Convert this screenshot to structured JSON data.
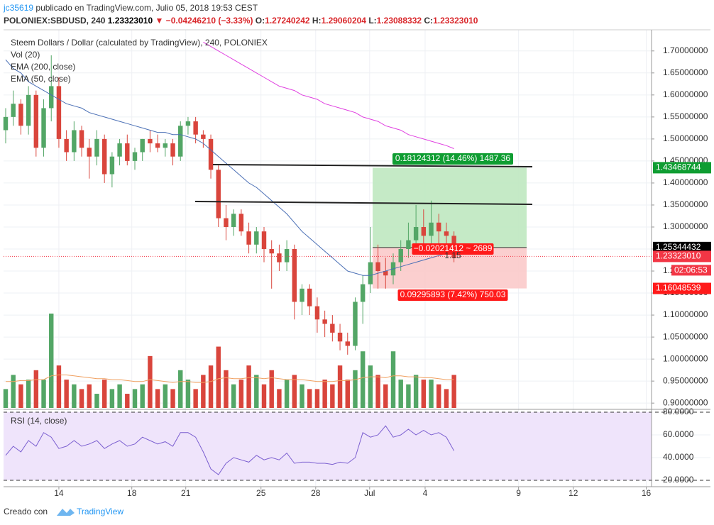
{
  "header": {
    "user": "jc35619",
    "published": "publicado en TradingView.com, Julio 05, 2018 19:53 CEST",
    "symbol": "POLONIEX:SBDUSD, 240",
    "last": "1.23323010",
    "change": "▼ −0.04246210 (−3.33%)",
    "o_label": "O:",
    "o": "1.27240242",
    "h_label": "H:",
    "h": "1.29060204",
    "l_label": "L:",
    "l": "1.23088332",
    "c_label": "C:",
    "c": "1.23323010"
  },
  "chart_data": {
    "type": "candlestick",
    "title": "Steem Dollars / Dollar (calculated by TradingView), 240, POLONIEX",
    "up_color": "#53a666",
    "down_color": "#d9453c",
    "open": [
      1.52,
      1.55,
      1.58,
      1.53,
      1.6,
      1.48,
      1.57,
      1.62,
      1.5,
      1.47,
      1.52,
      1.48,
      1.46,
      1.5,
      1.42,
      1.46,
      1.49,
      1.45,
      1.47,
      1.5,
      1.49,
      1.48,
      1.49,
      1.46,
      1.53,
      1.54,
      1.51,
      1.5,
      1.43,
      1.32,
      1.3,
      1.33,
      1.29,
      1.26,
      1.29,
      1.25,
      1.24,
      1.22,
      1.25,
      1.13,
      1.16,
      1.12,
      1.09,
      1.08,
      1.06,
      1.04,
      1.03,
      1.13,
      1.17,
      1.22,
      1.2,
      1.19,
      1.22,
      1.25,
      1.27,
      1.3,
      1.28,
      1.31,
      1.29,
      1.28
    ],
    "high": [
      1.57,
      1.61,
      1.59,
      1.62,
      1.61,
      1.59,
      1.69,
      1.64,
      1.52,
      1.54,
      1.53,
      1.5,
      1.52,
      1.51,
      1.47,
      1.5,
      1.51,
      1.48,
      1.5,
      1.52,
      1.51,
      1.5,
      1.5,
      1.54,
      1.55,
      1.55,
      1.52,
      1.51,
      1.44,
      1.35,
      1.34,
      1.34,
      1.31,
      1.3,
      1.3,
      1.27,
      1.26,
      1.27,
      1.26,
      1.17,
      1.17,
      1.14,
      1.11,
      1.1,
      1.08,
      1.06,
      1.14,
      1.19,
      1.3,
      1.26,
      1.23,
      1.24,
      1.27,
      1.31,
      1.35,
      1.34,
      1.36,
      1.33,
      1.31,
      1.29
    ],
    "low": [
      1.49,
      1.53,
      1.51,
      1.51,
      1.46,
      1.46,
      1.54,
      1.48,
      1.45,
      1.45,
      1.46,
      1.41,
      1.44,
      1.4,
      1.39,
      1.44,
      1.44,
      1.43,
      1.45,
      1.47,
      1.47,
      1.46,
      1.44,
      1.45,
      1.51,
      1.49,
      1.48,
      1.41,
      1.3,
      1.27,
      1.28,
      1.28,
      1.24,
      1.24,
      1.22,
      1.16,
      1.2,
      1.2,
      1.09,
      1.1,
      1.1,
      1.06,
      1.05,
      1.04,
      1.02,
      1.01,
      1.02,
      1.08,
      1.15,
      1.16,
      1.16,
      1.17,
      1.2,
      1.23,
      1.25,
      1.25,
      1.26,
      1.26,
      1.24,
      1.22
    ],
    "close": [
      1.55,
      1.58,
      1.53,
      1.6,
      1.48,
      1.57,
      1.62,
      1.5,
      1.47,
      1.52,
      1.48,
      1.46,
      1.5,
      1.42,
      1.46,
      1.49,
      1.45,
      1.47,
      1.5,
      1.49,
      1.48,
      1.49,
      1.46,
      1.53,
      1.54,
      1.51,
      1.5,
      1.43,
      1.32,
      1.3,
      1.33,
      1.29,
      1.26,
      1.29,
      1.25,
      1.24,
      1.22,
      1.25,
      1.13,
      1.16,
      1.12,
      1.09,
      1.08,
      1.06,
      1.04,
      1.03,
      1.13,
      1.17,
      1.22,
      1.2,
      1.19,
      1.22,
      1.25,
      1.27,
      1.3,
      1.28,
      1.31,
      1.29,
      1.28,
      1.23
    ],
    "indicators": [
      {
        "name": "EMA (200, close)",
        "color": "#e040e0",
        "values": [
          null,
          null,
          null,
          null,
          null,
          null,
          null,
          null,
          null,
          null,
          null,
          null,
          null,
          null,
          null,
          null,
          null,
          null,
          null,
          null,
          null,
          null,
          null,
          null,
          null,
          null,
          1.72,
          1.71,
          1.7,
          1.69,
          1.68,
          1.67,
          1.66,
          1.65,
          1.64,
          1.63,
          1.62,
          1.615,
          1.61,
          1.6,
          1.595,
          1.59,
          1.58,
          1.575,
          1.57,
          1.565,
          1.56,
          1.55,
          1.545,
          1.54,
          1.53,
          1.525,
          1.52,
          1.51,
          1.505,
          1.5,
          1.495,
          1.49,
          1.485,
          1.478
        ]
      },
      {
        "name": "EMA (50, close)",
        "color": "#4a6fb5",
        "values": [
          1.68,
          1.66,
          1.65,
          1.63,
          1.62,
          1.61,
          1.6,
          1.59,
          1.58,
          1.575,
          1.57,
          1.56,
          1.555,
          1.55,
          1.545,
          1.54,
          1.535,
          1.53,
          1.525,
          1.52,
          1.515,
          1.515,
          1.51,
          1.51,
          1.505,
          1.5,
          1.49,
          1.475,
          1.46,
          1.445,
          1.43,
          1.415,
          1.4,
          1.39,
          1.375,
          1.36,
          1.345,
          1.33,
          1.31,
          1.29,
          1.275,
          1.26,
          1.245,
          1.23,
          1.215,
          1.2,
          1.195,
          1.19,
          1.19,
          1.195,
          1.2,
          1.205,
          1.21,
          1.215,
          1.22,
          1.225,
          1.23,
          1.235,
          1.24,
          1.245
        ]
      }
    ],
    "volume": {
      "name": "Vol (20)",
      "ma_color": "#f0a060",
      "values": [
        20,
        35,
        25,
        30,
        40,
        30,
        100,
        45,
        30,
        25,
        20,
        25,
        15,
        30,
        20,
        25,
        15,
        20,
        25,
        55,
        20,
        25,
        20,
        40,
        30,
        20,
        35,
        45,
        65,
        40,
        25,
        30,
        45,
        35,
        25,
        40,
        20,
        30,
        35,
        25,
        20,
        20,
        30,
        25,
        45,
        30,
        40,
        60,
        45,
        35,
        25,
        60,
        30,
        25,
        35,
        30,
        30,
        25,
        20,
        35
      ],
      "ma": [
        28,
        28,
        29,
        29,
        30,
        30,
        34,
        35,
        35,
        34,
        33,
        32,
        31,
        31,
        30,
        30,
        29,
        28,
        28,
        30,
        29,
        28,
        27,
        28,
        28,
        27,
        27,
        28,
        31,
        32,
        31,
        31,
        32,
        32,
        31,
        32,
        31,
        30,
        30,
        30,
        29,
        28,
        28,
        28,
        29,
        29,
        30,
        32,
        33,
        33,
        32,
        34,
        34,
        33,
        33,
        32,
        32,
        31,
        30,
        30
      ]
    },
    "rsi": {
      "name": "RSI (14, close)",
      "color": "#7b5fd0",
      "values": [
        42,
        50,
        45,
        55,
        50,
        62,
        58,
        48,
        50,
        55,
        50,
        52,
        55,
        48,
        52,
        55,
        50,
        52,
        58,
        55,
        52,
        54,
        50,
        62,
        62,
        58,
        45,
        30,
        25,
        35,
        40,
        38,
        36,
        42,
        38,
        40,
        38,
        44,
        35,
        36,
        36,
        35,
        35,
        34,
        36,
        35,
        40,
        62,
        58,
        60,
        68,
        58,
        60,
        65,
        60,
        64,
        60,
        62,
        58,
        46
      ],
      "ylim": [
        15,
        81.9
      ],
      "yticks": [
        {
          "value": 20,
          "label": "20.0000"
        },
        {
          "value": 40,
          "label": "40.0000"
        },
        {
          "value": 60,
          "label": "60.0000"
        },
        {
          "value": 80,
          "label": "80.0000"
        }
      ]
    },
    "xlim": [
      -0.28,
      85.0
    ],
    "xticks": [
      {
        "value": 7.0,
        "label": "14"
      },
      {
        "value": 16.6,
        "label": "18"
      },
      {
        "value": 23.7,
        "label": "21"
      },
      {
        "value": 33.6,
        "label": "25"
      },
      {
        "value": 40.8,
        "label": "28"
      },
      {
        "value": 47.9,
        "label": "Jul"
      },
      {
        "value": 55.2,
        "label": "4"
      },
      {
        "value": 67.5,
        "label": "9"
      },
      {
        "value": 74.7,
        "label": "12"
      },
      {
        "value": 84.3,
        "label": "16"
      }
    ],
    "ylim": [
      0.889,
      1.748
    ],
    "yticks": [
      {
        "value": 0.9,
        "label": "0.90000000"
      },
      {
        "value": 0.95,
        "label": "0.95000000"
      },
      {
        "value": 1.0,
        "label": "1.00000000"
      },
      {
        "value": 1.05,
        "label": "1.05000000"
      },
      {
        "value": 1.1,
        "label": "1.10000000"
      },
      {
        "value": 1.15,
        "label": "1.15000000"
      },
      {
        "value": 1.2,
        "label": "1.20000000"
      },
      {
        "value": 1.25,
        "label": "1.25000000"
      },
      {
        "value": 1.3,
        "label": "1.30000000"
      },
      {
        "value": 1.35,
        "label": "1.35000000"
      },
      {
        "value": 1.4,
        "label": "1.40000000"
      },
      {
        "value": 1.45,
        "label": "1.45000000"
      },
      {
        "value": 1.5,
        "label": "1.50000000"
      },
      {
        "value": 1.55,
        "label": "1.55000000"
      },
      {
        "value": 1.6,
        "label": "1.60000000"
      },
      {
        "value": 1.65,
        "label": "1.65000000"
      },
      {
        "value": 1.7,
        "label": "1.70000000"
      }
    ],
    "grid": true,
    "price_markers": [
      {
        "value": 1.43468744,
        "label": "1.43468744",
        "color": "#0f9d32"
      },
      {
        "value": 1.25344432,
        "label": "1.25344432",
        "color": "#000000"
      },
      {
        "value": 1.16048539,
        "label": "1.16048539",
        "color": "#ff1a1a"
      }
    ],
    "current_price": {
      "value": 1.2332301,
      "label": "1.23323010",
      "color": "#f23645",
      "countdown": "02:06:53"
    },
    "position": {
      "target_label": "0.18124312 (14.46%) 1487.36",
      "entry_label": "−0.02021412 ~ 2689",
      "ratio_label": "1.15",
      "stop_label": "0.09295893 (7.42%) 750.03"
    }
  },
  "footer": {
    "created": "Creado con",
    "brand": "TradingView"
  }
}
